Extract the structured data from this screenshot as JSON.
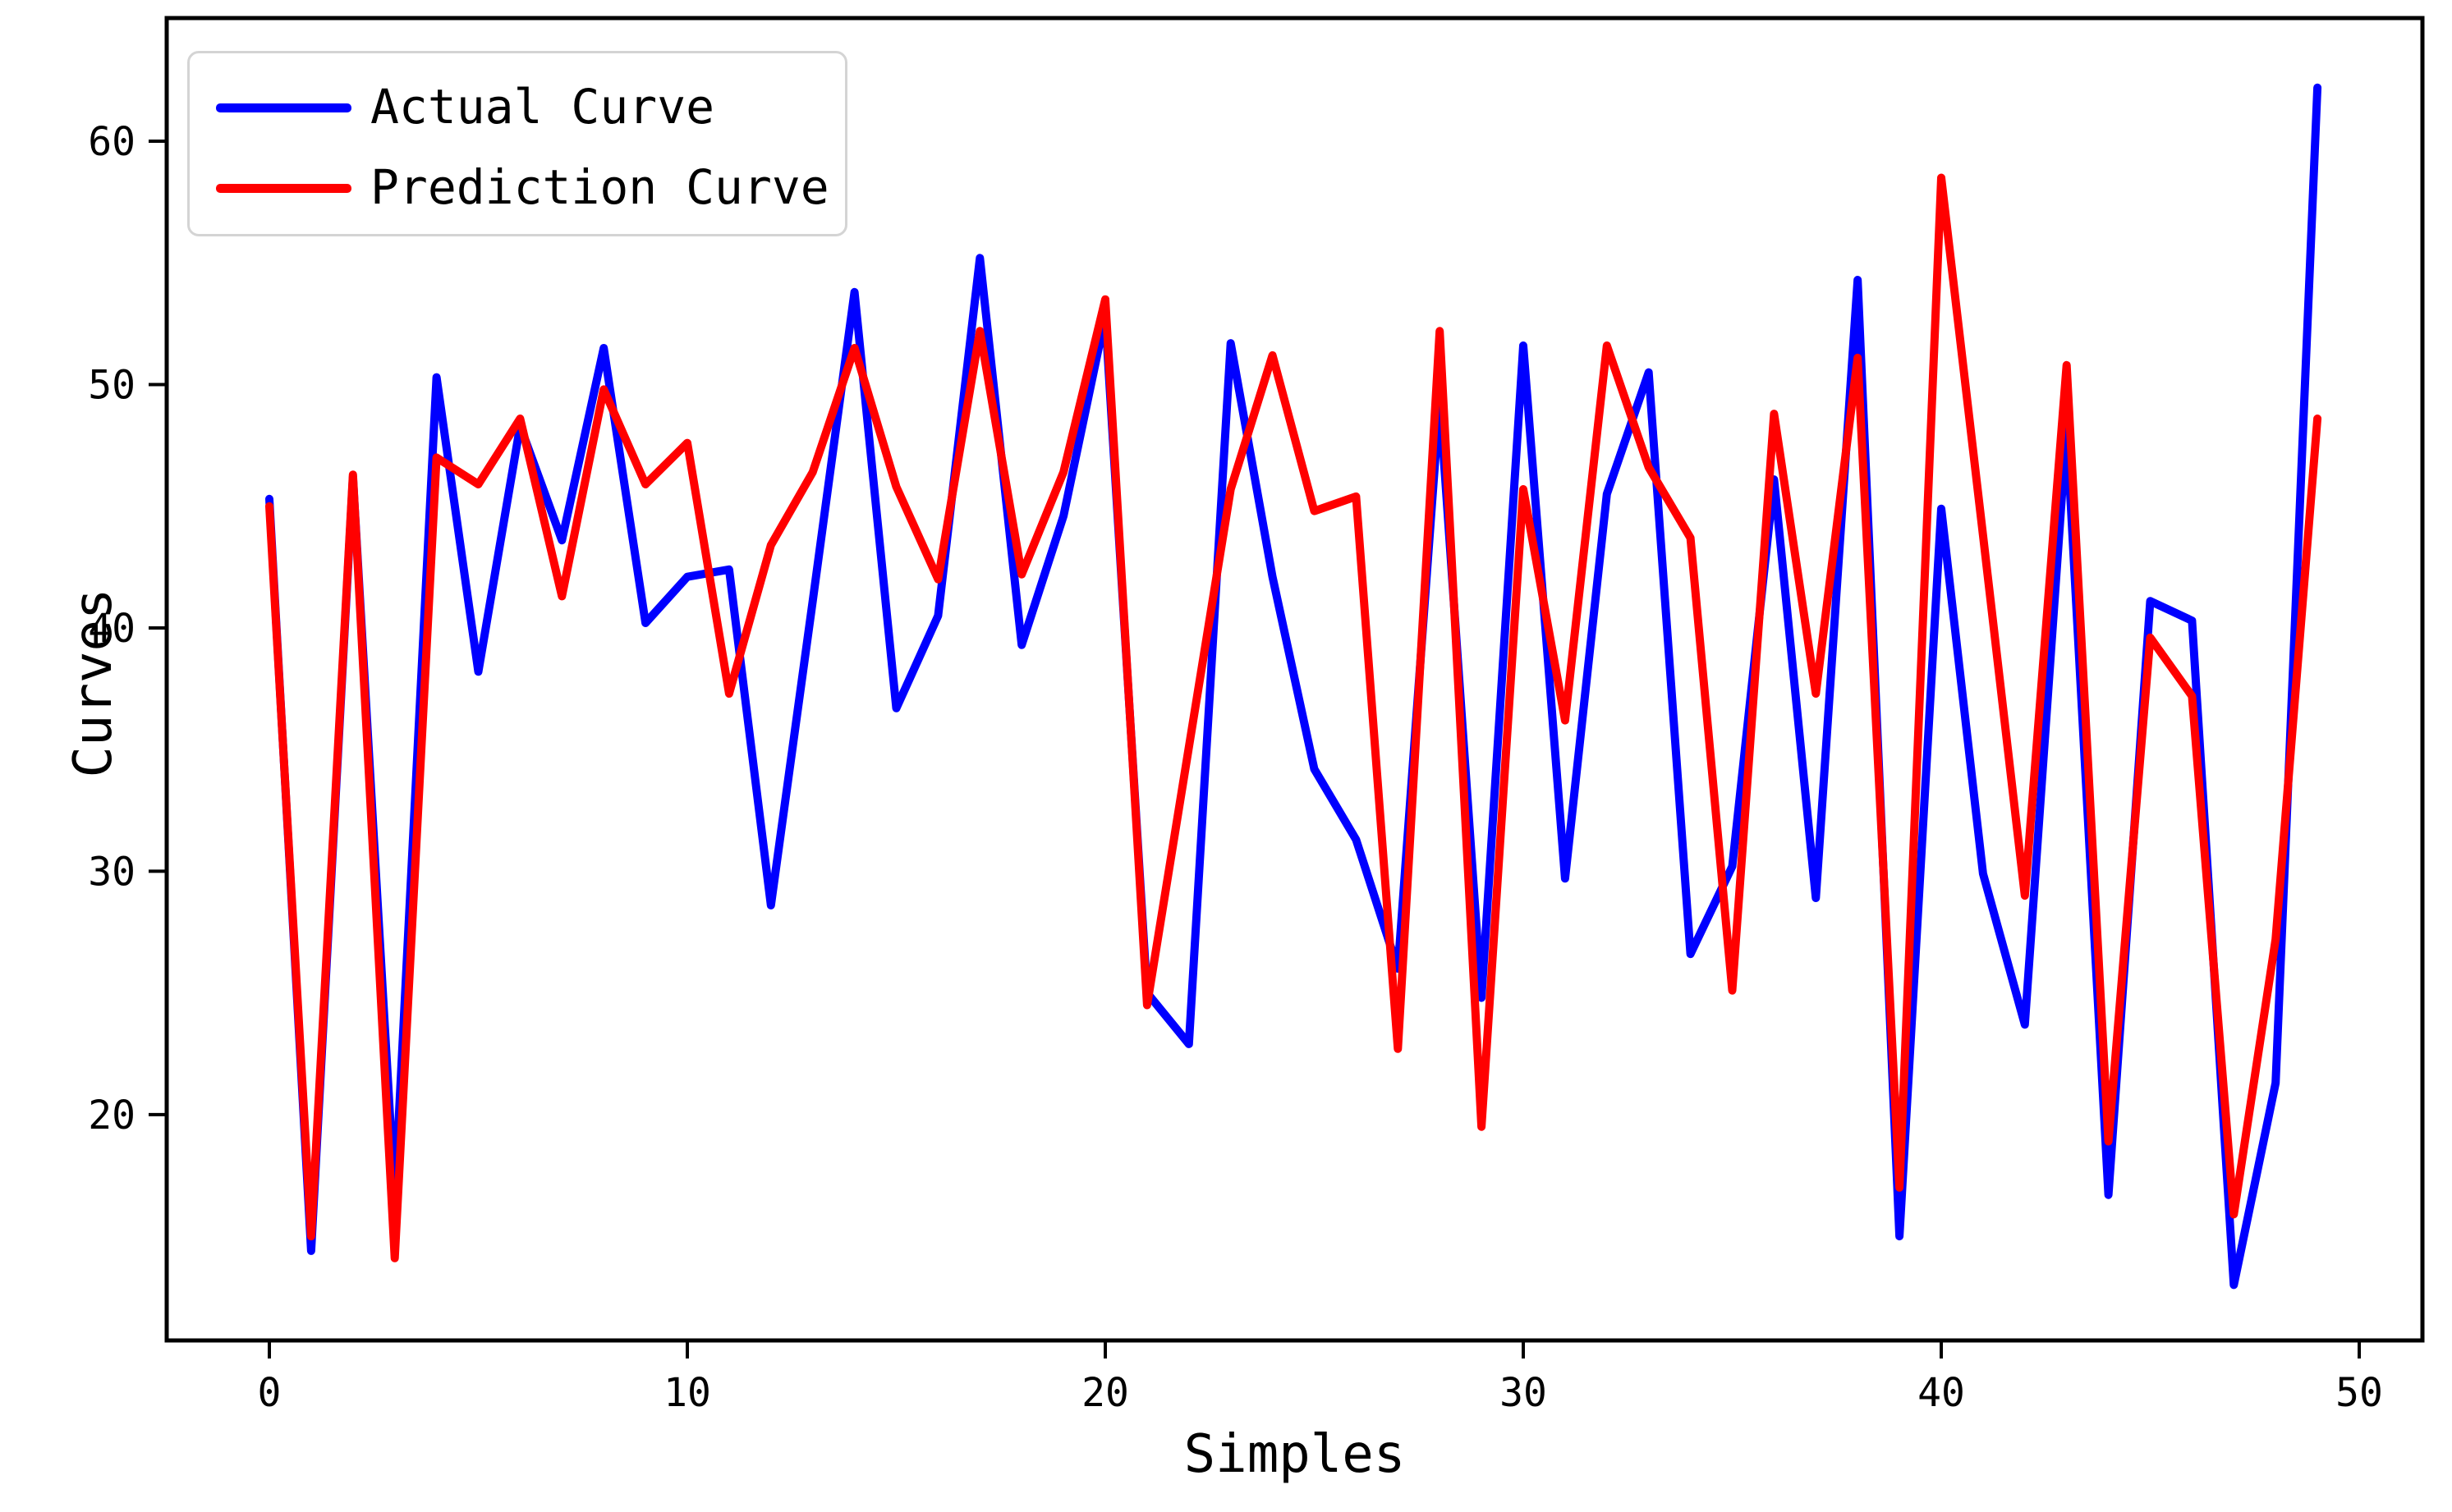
{
  "chart_data": {
    "type": "line",
    "title": "",
    "xlabel": "Simples",
    "ylabel": "Curves",
    "x": [
      0,
      1,
      2,
      3,
      4,
      5,
      6,
      7,
      8,
      9,
      10,
      11,
      12,
      13,
      14,
      15,
      16,
      17,
      18,
      19,
      20,
      21,
      22,
      23,
      24,
      25,
      26,
      27,
      28,
      29,
      30,
      31,
      32,
      33,
      34,
      35,
      36,
      37,
      38,
      39,
      40,
      41,
      42,
      43,
      44,
      45,
      46,
      47,
      48,
      49
    ],
    "series": [
      {
        "name": "Actual Curve",
        "color": "#0000ff",
        "values": [
          45.3,
          14.4,
          46.2,
          16.6,
          50.3,
          38.2,
          48.3,
          43.6,
          51.5,
          40.2,
          42.1,
          42.4,
          28.6,
          41.1,
          53.8,
          36.7,
          40.5,
          55.2,
          39.3,
          44.6,
          52.8,
          25.0,
          22.9,
          51.7,
          42.1,
          34.2,
          31.3,
          26.0,
          49.4,
          24.8,
          51.6,
          29.7,
          45.5,
          50.5,
          26.6,
          30.2,
          46.1,
          28.9,
          54.3,
          15.0,
          44.9,
          29.9,
          23.7,
          48.2,
          16.7,
          41.1,
          40.3,
          13.0,
          21.3,
          62.2
        ]
      },
      {
        "name": "Prediction Curve",
        "color": "#ff0000",
        "values": [
          45.0,
          15.0,
          46.3,
          14.1,
          47.0,
          45.9,
          48.6,
          41.3,
          49.8,
          45.9,
          47.6,
          37.3,
          43.4,
          46.4,
          51.5,
          45.8,
          42.0,
          52.2,
          42.2,
          46.4,
          53.5,
          24.5,
          35.1,
          45.7,
          51.2,
          44.8,
          45.4,
          22.7,
          52.2,
          19.5,
          45.7,
          36.2,
          51.6,
          46.6,
          43.7,
          25.1,
          48.8,
          37.3,
          51.1,
          17.0,
          58.5,
          43.8,
          29.0,
          50.8,
          18.9,
          39.6,
          37.2,
          15.9,
          27.2,
          48.6
        ]
      }
    ],
    "x_ticks": [
      0,
      10,
      20,
      30,
      40,
      50
    ],
    "y_ticks": [
      20,
      30,
      40,
      50,
      60
    ],
    "xlim": [
      -2.456,
      51.512
    ],
    "ylim": [
      10.72,
      65.06
    ],
    "grid": false,
    "legend_position": "upper left"
  }
}
